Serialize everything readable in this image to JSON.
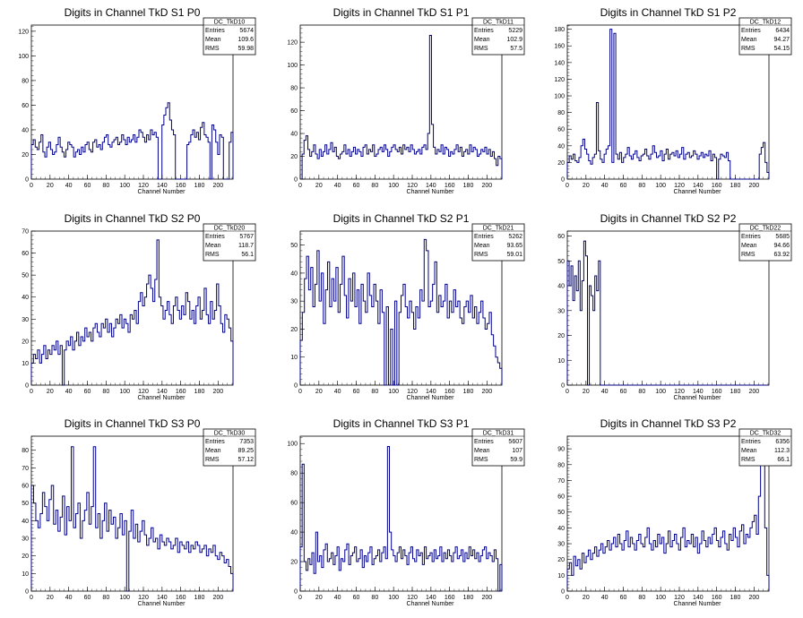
{
  "chart_data": [
    {
      "type": "histogram",
      "title": "Digits in Channel TkD S1 P0",
      "xlabel": "Channel Number",
      "xlim": [
        0,
        216
      ],
      "ylim": [
        0,
        125
      ],
      "yticks": [
        0,
        20,
        40,
        60,
        80,
        100,
        120
      ],
      "xticks": [
        0,
        20,
        40,
        60,
        80,
        100,
        120,
        140,
        160,
        180,
        200
      ],
      "stats": {
        "name": "DC_TkD10",
        "entries": "5674",
        "mean": "109.6",
        "rms": "59.98"
      },
      "values": [
        28,
        32,
        26,
        24,
        30,
        36,
        22,
        18,
        26,
        30,
        24,
        20,
        22,
        28,
        34,
        26,
        22,
        18,
        24,
        30,
        28,
        26,
        18,
        22,
        24,
        20,
        26,
        22,
        28,
        30,
        24,
        22,
        30,
        32,
        26,
        28,
        24,
        30,
        34,
        36,
        28,
        26,
        30,
        32,
        34,
        28,
        30,
        36,
        32,
        28,
        34,
        30,
        32,
        36,
        30,
        34,
        40,
        38,
        34,
        30,
        36,
        32,
        40,
        36,
        38,
        34,
        0,
        0,
        44,
        52,
        58,
        62,
        48,
        40,
        36,
        0,
        0,
        0,
        0,
        0,
        0,
        28,
        30,
        36,
        40,
        34,
        38,
        32,
        42,
        46,
        36,
        34,
        30,
        0,
        44,
        40,
        30,
        20,
        36,
        34,
        0,
        0,
        0,
        30,
        38
      ]
    },
    {
      "type": "histogram",
      "title": "Digits in Channel TkD S1 P1",
      "xlabel": "Channel Number",
      "xlim": [
        0,
        216
      ],
      "ylim": [
        0,
        135
      ],
      "yticks": [
        0,
        20,
        40,
        60,
        80,
        100,
        120
      ],
      "xticks": [
        0,
        20,
        40,
        60,
        80,
        100,
        120,
        140,
        160,
        180,
        200
      ],
      "stats": {
        "name": "DC_TkD11",
        "entries": "5229",
        "mean": "102.9",
        "rms": "57.5"
      },
      "values": [
        0,
        22,
        34,
        38,
        26,
        20,
        24,
        30,
        22,
        18,
        26,
        20,
        24,
        30,
        22,
        26,
        32,
        24,
        28,
        20,
        18,
        22,
        24,
        30,
        22,
        26,
        20,
        24,
        28,
        22,
        26,
        24,
        20,
        28,
        30,
        22,
        26,
        24,
        30,
        20,
        22,
        26,
        28,
        24,
        30,
        26,
        20,
        24,
        28,
        30,
        26,
        24,
        28,
        22,
        30,
        26,
        28,
        24,
        30,
        26,
        22,
        24,
        26,
        22,
        28,
        30,
        26,
        40,
        126,
        48,
        28,
        22,
        26,
        24,
        30,
        22,
        28,
        26,
        20,
        24,
        22,
        26,
        30,
        24,
        28,
        20,
        24,
        26,
        22,
        30,
        24,
        28,
        26,
        20,
        22,
        26,
        24,
        28,
        22,
        26,
        20,
        24,
        18,
        12,
        20,
        18
      ]
    },
    {
      "type": "histogram",
      "title": "Digits in Channel TkD S1 P2",
      "xlabel": "Channel Number",
      "xlim": [
        0,
        216
      ],
      "ylim": [
        0,
        185
      ],
      "yticks": [
        0,
        20,
        40,
        60,
        80,
        100,
        120,
        140,
        160,
        180
      ],
      "xticks": [
        0,
        20,
        40,
        60,
        80,
        100,
        120,
        140,
        160,
        180,
        200
      ],
      "stats": {
        "name": "DC_TkD12",
        "entries": "6434",
        "mean": "94.27",
        "rms": "54.15"
      },
      "values": [
        20,
        28,
        24,
        30,
        22,
        20,
        26,
        40,
        48,
        36,
        30,
        22,
        18,
        26,
        30,
        92,
        34,
        24,
        20,
        30,
        36,
        40,
        180,
        20,
        175,
        30,
        24,
        32,
        20,
        26,
        30,
        38,
        28,
        24,
        30,
        34,
        26,
        22,
        28,
        30,
        36,
        28,
        24,
        30,
        40,
        32,
        26,
        28,
        34,
        22,
        30,
        36,
        24,
        30,
        32,
        28,
        34,
        26,
        30,
        38,
        24,
        30,
        32,
        26,
        28,
        34,
        30,
        24,
        28,
        32,
        26,
        30,
        28,
        34,
        22,
        30,
        26,
        0,
        24,
        30,
        28,
        26,
        32,
        22,
        0,
        0,
        0,
        0,
        0,
        0,
        0,
        0,
        0,
        0,
        0,
        0,
        0,
        0,
        0,
        30,
        38,
        44,
        20,
        8
      ]
    },
    {
      "type": "histogram",
      "title": "Digits in Channel TkD S2 P0",
      "xlabel": "Channel Number",
      "xlim": [
        0,
        216
      ],
      "ylim": [
        0,
        70
      ],
      "yticks": [
        0,
        10,
        20,
        30,
        40,
        50,
        60,
        70
      ],
      "xticks": [
        0,
        20,
        40,
        60,
        80,
        100,
        120,
        140,
        160,
        180,
        200
      ],
      "stats": {
        "name": "DC_TkD20",
        "entries": "5767",
        "mean": "118.7",
        "rms": "56.1"
      },
      "values": [
        10,
        14,
        12,
        16,
        10,
        14,
        18,
        12,
        16,
        14,
        18,
        16,
        20,
        14,
        18,
        0,
        16,
        20,
        18,
        22,
        16,
        20,
        24,
        18,
        22,
        20,
        26,
        22,
        24,
        20,
        26,
        28,
        24,
        22,
        28,
        26,
        30,
        24,
        28,
        22,
        26,
        30,
        28,
        32,
        26,
        30,
        28,
        24,
        32,
        30,
        34,
        28,
        38,
        42,
        36,
        40,
        46,
        50,
        44,
        38,
        48,
        66,
        40,
        36,
        30,
        34,
        38,
        32,
        28,
        36,
        40,
        34,
        30,
        36,
        32,
        42,
        38,
        30,
        34,
        28,
        36,
        40,
        30,
        34,
        44,
        32,
        28,
        38,
        30,
        34,
        46,
        36,
        28,
        24,
        32,
        30,
        26,
        20
      ]
    },
    {
      "type": "histogram",
      "title": "Digits in Channel TkD S2 P1",
      "xlabel": "Channel Number",
      "xlim": [
        0,
        216
      ],
      "ylim": [
        0,
        55
      ],
      "yticks": [
        0,
        10,
        20,
        30,
        40,
        50
      ],
      "xticks": [
        0,
        20,
        40,
        60,
        80,
        100,
        120,
        140,
        160,
        180,
        200
      ],
      "stats": {
        "name": "DC_TkD21",
        "entries": "5262",
        "mean": "93.65",
        "rms": "59.01"
      },
      "values": [
        16,
        26,
        38,
        46,
        34,
        42,
        28,
        36,
        48,
        30,
        40,
        22,
        34,
        44,
        28,
        38,
        30,
        42,
        26,
        36,
        46,
        32,
        24,
        38,
        30,
        40,
        28,
        34,
        22,
        36,
        30,
        26,
        40,
        32,
        28,
        36,
        30,
        22,
        34,
        26,
        0,
        28,
        0,
        20,
        0,
        30,
        0,
        26,
        32,
        36,
        28,
        24,
        30,
        26,
        20,
        28,
        24,
        34,
        30,
        52,
        48,
        28,
        30,
        36,
        44,
        26,
        32,
        28,
        30,
        36,
        24,
        30,
        26,
        34,
        28,
        30,
        24,
        22,
        28,
        30,
        26,
        32,
        24,
        28,
        22,
        26,
        30,
        24,
        20,
        22,
        26,
        18,
        14,
        10,
        8,
        6
      ]
    },
    {
      "type": "histogram",
      "title": "Digits in Channel TkD S2 P2",
      "xlabel": "Channel Number",
      "xlim": [
        0,
        216
      ],
      "ylim": [
        0,
        62
      ],
      "yticks": [
        0,
        10,
        20,
        30,
        40,
        50,
        60
      ],
      "xticks": [
        0,
        20,
        40,
        60,
        80,
        100,
        120,
        140,
        160,
        180,
        200
      ],
      "stats": {
        "name": "DC_TkD22",
        "entries": "5685",
        "mean": "94.66",
        "rms": "63.92"
      },
      "values": [
        50,
        40,
        48,
        34,
        44,
        38,
        50,
        30,
        42,
        58,
        52,
        0,
        40,
        36,
        30,
        44,
        38,
        50,
        0,
        0,
        0,
        0,
        0,
        0,
        0,
        0,
        0,
        0,
        0,
        0,
        0,
        0,
        0,
        0,
        0,
        0,
        0,
        0,
        0,
        0,
        0,
        0,
        0,
        0,
        0,
        0,
        0,
        0,
        0,
        0,
        0,
        0,
        0,
        0,
        0,
        0,
        0,
        0,
        0,
        0,
        0,
        0,
        0,
        0,
        0,
        0,
        0,
        0,
        0,
        0,
        0,
        0,
        0,
        0,
        0,
        0,
        0,
        0,
        0,
        0,
        0,
        0,
        0,
        0,
        0,
        0,
        0,
        0,
        0,
        0,
        0,
        0,
        0,
        0,
        0,
        0,
        0,
        0,
        0,
        0,
        0,
        0,
        0,
        0,
        0,
        0,
        0,
        0,
        0,
        0
      ]
    },
    {
      "type": "histogram",
      "title": "Digits in Channel TkD S3 P0",
      "xlabel": "Channel Number",
      "xlim": [
        0,
        216
      ],
      "ylim": [
        0,
        88
      ],
      "yticks": [
        0,
        10,
        20,
        30,
        40,
        50,
        60,
        70,
        80
      ],
      "xticks": [
        0,
        20,
        40,
        60,
        80,
        100,
        120,
        140,
        160,
        180,
        200
      ],
      "stats": {
        "name": "DC_TkD30",
        "entries": "7353",
        "mean": "89.25",
        "rms": "57.12"
      },
      "values": [
        60,
        50,
        40,
        36,
        44,
        56,
        48,
        40,
        52,
        60,
        38,
        46,
        34,
        42,
        54,
        32,
        48,
        40,
        82,
        36,
        44,
        50,
        30,
        40,
        46,
        56,
        38,
        48,
        82,
        36,
        44,
        30,
        40,
        50,
        34,
        46,
        38,
        42,
        30,
        36,
        44,
        32,
        40,
        0,
        34,
        46,
        30,
        38,
        28,
        34,
        40,
        32,
        26,
        30,
        36,
        28,
        30,
        24,
        32,
        28,
        26,
        30,
        28,
        24,
        26,
        30,
        22,
        28,
        26,
        24,
        28,
        22,
        26,
        24,
        28,
        26,
        22,
        24,
        26,
        20,
        24,
        22,
        26,
        20,
        18,
        22,
        20,
        16,
        18,
        14,
        10
      ]
    },
    {
      "type": "histogram",
      "title": "Digits in Channel TkD S3 P1",
      "xlabel": "Channel Number",
      "xlim": [
        0,
        216
      ],
      "ylim": [
        0,
        105
      ],
      "yticks": [
        0,
        20,
        40,
        60,
        80,
        100
      ],
      "xticks": [
        0,
        20,
        40,
        60,
        80,
        100,
        120,
        140,
        160,
        180,
        200
      ],
      "stats": {
        "name": "DC_TkD31",
        "entries": "5607",
        "mean": "107",
        "rms": "59.9"
      },
      "values": [
        30,
        86,
        20,
        14,
        22,
        18,
        26,
        12,
        40,
        20,
        24,
        16,
        28,
        32,
        20,
        22,
        26,
        18,
        24,
        30,
        14,
        22,
        20,
        28,
        32,
        18,
        24,
        26,
        30,
        20,
        22,
        28,
        16,
        24,
        20,
        26,
        30,
        18,
        22,
        24,
        28,
        20,
        26,
        30,
        22,
        98,
        40,
        28,
        24,
        20,
        26,
        30,
        22,
        28,
        24,
        18,
        26,
        30,
        22,
        20,
        28,
        24,
        26,
        18,
        30,
        22,
        24,
        26,
        20,
        28,
        22,
        24,
        30,
        20,
        26,
        22,
        28,
        24,
        20,
        26,
        30,
        22,
        24,
        28,
        20,
        26,
        22,
        30,
        24,
        28,
        22,
        26,
        20,
        24,
        28,
        30,
        22,
        26,
        24,
        20,
        28,
        22,
        0,
        18
      ]
    },
    {
      "type": "histogram",
      "title": "Digits in Channel TkD S3 P2",
      "xlabel": "Channel Number",
      "xlim": [
        0,
        216
      ],
      "ylim": [
        0,
        98
      ],
      "yticks": [
        0,
        10,
        20,
        30,
        40,
        50,
        60,
        70,
        80,
        90
      ],
      "xticks": [
        0,
        20,
        40,
        60,
        80,
        100,
        120,
        140,
        160,
        180,
        200
      ],
      "stats": {
        "name": "DC_TkD32",
        "entries": "6356",
        "mean": "112.3",
        "rms": "66.1"
      },
      "values": [
        14,
        18,
        10,
        22,
        16,
        20,
        14,
        24,
        18,
        22,
        26,
        20,
        24,
        28,
        22,
        26,
        30,
        24,
        28,
        32,
        26,
        30,
        34,
        28,
        36,
        30,
        26,
        32,
        38,
        28,
        34,
        30,
        26,
        32,
        36,
        30,
        28,
        34,
        40,
        30,
        26,
        32,
        28,
        36,
        30,
        34,
        24,
        30,
        38,
        28,
        32,
        36,
        30,
        26,
        34,
        40,
        28,
        32,
        30,
        36,
        28,
        34,
        24,
        30,
        38,
        32,
        28,
        34,
        30,
        36,
        40,
        32,
        28,
        34,
        38,
        30,
        26,
        36,
        32,
        40,
        34,
        28,
        38,
        42,
        30,
        36,
        34,
        40,
        44,
        48,
        36,
        60,
        96,
        96,
        40,
        10
      ]
    }
  ]
}
